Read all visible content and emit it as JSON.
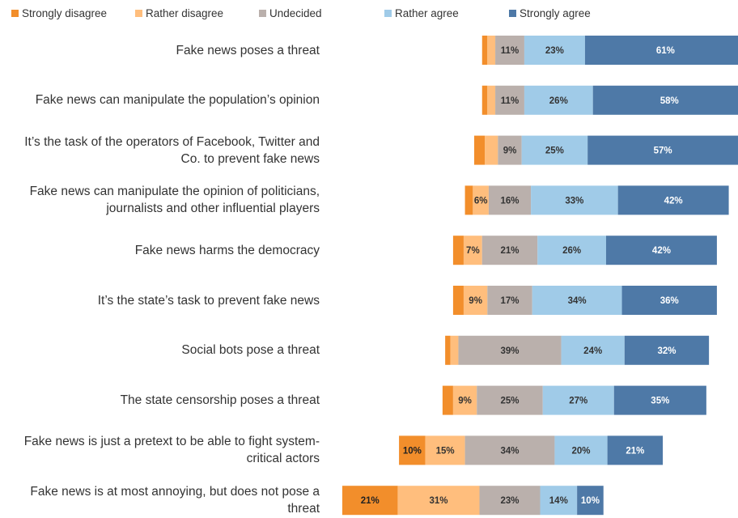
{
  "chart_data": {
    "type": "diverging_stacked_bar",
    "categories": [
      "Fake news poses a threat",
      "Fake news can manipulate the population’s opinion",
      "It’s the task of the operators of Facebook, Twitter and Co. to prevent fake news",
      "Fake news can manipulate the opinion of politicians, journalists and other influential players",
      "Fake news harms the democracy",
      "It’s the state’s task to prevent fake news",
      "Social bots pose a threat",
      "The state censorship poses a threat",
      "Fake news is just a pretext to be able to fight system-critical actors",
      "Fake news is at most annoying, but does not pose a threat"
    ],
    "series": [
      {
        "name": "Strongly disagree",
        "color": "#f28e2b",
        "values": [
          2,
          2,
          4,
          3,
          4,
          4,
          2,
          4,
          10,
          21
        ],
        "value_labels": [
          null,
          null,
          null,
          null,
          null,
          null,
          null,
          null,
          "10%",
          "21%"
        ]
      },
      {
        "name": "Rather disagree",
        "color": "#ffbe7d",
        "values": [
          3,
          3,
          5,
          6,
          7,
          9,
          3,
          9,
          15,
          31
        ],
        "value_labels": [
          null,
          null,
          null,
          "6%",
          "7%",
          "9%",
          null,
          "9%",
          "15%",
          "31%"
        ]
      },
      {
        "name": "Undecided",
        "color": "#bab0ac",
        "values": [
          11,
          11,
          9,
          16,
          21,
          17,
          39,
          25,
          34,
          23
        ],
        "value_labels": [
          "11%",
          "11%",
          "9%",
          "16%",
          "21%",
          "17%",
          "39%",
          "25%",
          "34%",
          "23%"
        ]
      },
      {
        "name": "Rather agree",
        "color": "#a0cbe8",
        "values": [
          23,
          26,
          25,
          33,
          26,
          34,
          24,
          27,
          20,
          14
        ],
        "value_labels": [
          "23%",
          "26%",
          "25%",
          "33%",
          "26%",
          "34%",
          "24%",
          "27%",
          "20%",
          "14%"
        ]
      },
      {
        "name": "Strongly agree",
        "color": "#4e79a7",
        "values": [
          61,
          58,
          57,
          42,
          42,
          36,
          32,
          35,
          21,
          10
        ],
        "value_labels": [
          "61%",
          "58%",
          "57%",
          "42%",
          "42%",
          "36%",
          "32%",
          "35%",
          "21%",
          "10%"
        ]
      }
    ]
  }
}
